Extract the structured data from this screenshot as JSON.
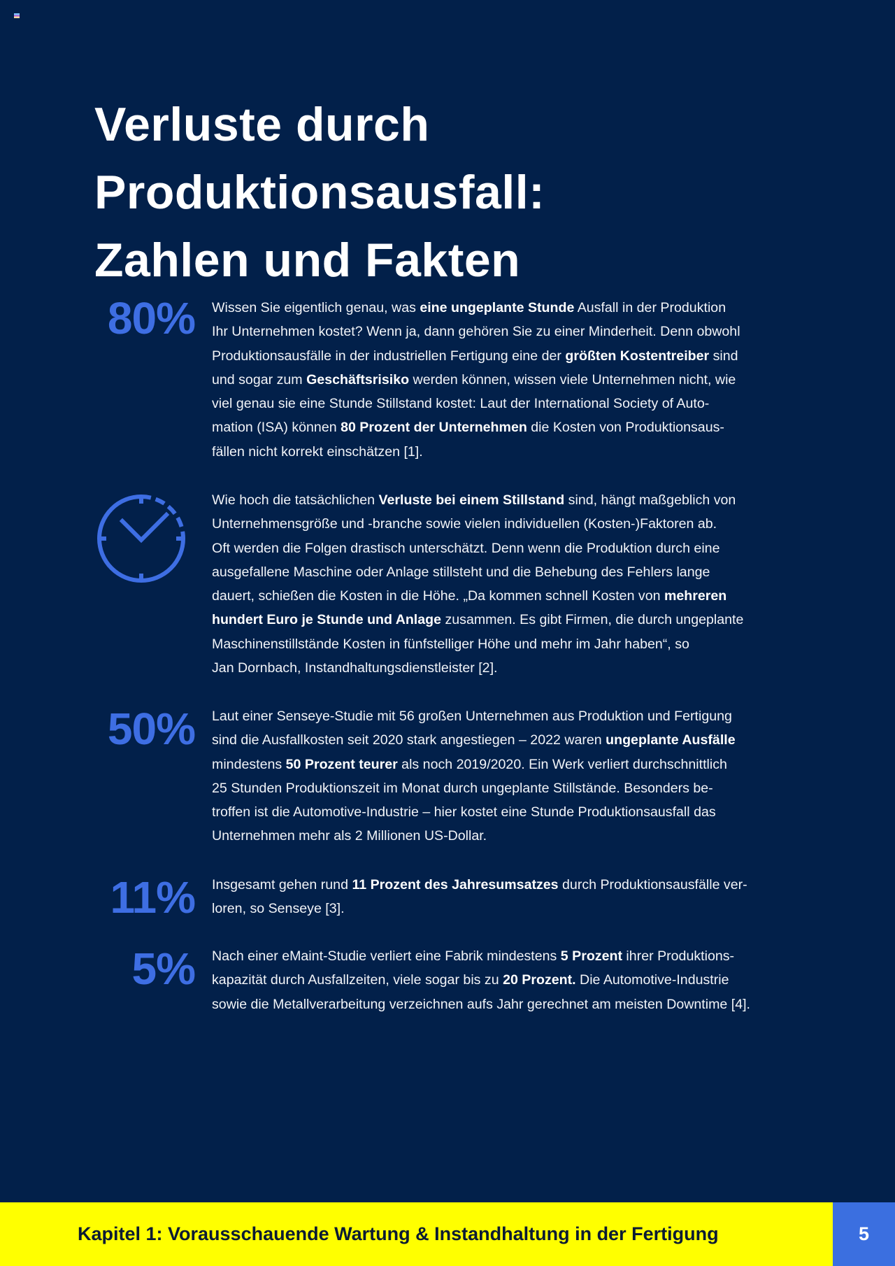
{
  "title_lines": [
    "Verluste durch",
    "Produktionsausfall:",
    "Zahlen und Fakten"
  ],
  "accent_color": "#3e6ee3",
  "sections": [
    {
      "stat": "80%",
      "lines": [
        [
          {
            "t": "Wissen Sie eigentlich genau, was "
          },
          {
            "t": "eine ungeplante Stunde",
            "b": true
          },
          {
            "t": " Ausfall in der Produktion"
          }
        ],
        [
          {
            "t": "Ihr Unternehmen kostet? Wenn ja, dann gehören Sie zu einer Minderheit. Denn obwohl"
          }
        ],
        [
          {
            "t": "Produktionsausfälle in der industriellen Fertigung eine der "
          },
          {
            "t": "größten Kostentreiber",
            "b": true
          },
          {
            "t": " sind"
          }
        ],
        [
          {
            "t": "und sogar zum "
          },
          {
            "t": "Geschäftsrisiko",
            "b": true
          },
          {
            "t": " werden können, wissen viele Unternehmen nicht, wie"
          }
        ],
        [
          {
            "t": "viel genau sie eine Stunde Stillstand kostet: Laut der International Society of Auto-"
          }
        ],
        [
          {
            "t": "mation (ISA) können "
          },
          {
            "t": "80 Prozent der Unternehmen",
            "b": true
          },
          {
            "t": " die Kosten von Produktionsaus-"
          }
        ],
        [
          {
            "t": "fällen nicht korrekt einschätzen [1]."
          }
        ]
      ]
    },
    {
      "icon": "clock-icon",
      "lines": [
        [
          {
            "t": "Wie hoch die tatsächlichen "
          },
          {
            "t": "Verluste bei einem Stillstand",
            "b": true
          },
          {
            "t": " sind, hängt maßgeblich von"
          }
        ],
        [
          {
            "t": "Unternehmensgröße und -branche sowie vielen individuellen (Kosten-)Faktoren ab."
          }
        ],
        [
          {
            "t": "Oft werden die Folgen drastisch unterschätzt. Denn wenn die Produktion durch eine"
          }
        ],
        [
          {
            "t": "ausgefallene Maschine oder Anlage stillsteht und die Behebung des Fehlers lange"
          }
        ],
        [
          {
            "t": "dauert, schießen die Kosten in die Höhe. „Da kommen schnell Kosten von "
          },
          {
            "t": "mehreren",
            "b": true
          }
        ],
        [
          {
            "t": "hundert Euro je Stunde und Anlage",
            "b": true
          },
          {
            "t": " zusammen. Es gibt Firmen, die durch ungeplante"
          }
        ],
        [
          {
            "t": "Maschinenstillstände Kosten in fünfstelliger Höhe und mehr im Jahr haben“, so"
          }
        ],
        [
          {
            "t": "Jan Dornbach, Instandhaltungsdienstleister [2]."
          }
        ]
      ]
    },
    {
      "stat": "50%",
      "lines": [
        [
          {
            "t": "Laut einer Senseye-Studie mit 56 großen Unternehmen aus Produktion und Fertigung"
          }
        ],
        [
          {
            "t": "sind die Ausfallkosten seit 2020 stark angestiegen – 2022 waren "
          },
          {
            "t": "ungeplante Ausfälle",
            "b": true
          }
        ],
        [
          {
            "t": "mindestens "
          },
          {
            "t": "50 Prozent teurer",
            "b": true
          },
          {
            "t": " als noch 2019/2020. Ein Werk verliert durchschnittlich"
          }
        ],
        [
          {
            "t": "25 Stunden Produktionszeit im Monat durch ungeplante Stillstände. Besonders be-"
          }
        ],
        [
          {
            "t": "troffen ist die Automotive-Industrie – hier kostet eine Stunde Produktionsausfall das"
          }
        ],
        [
          {
            "t": "Unternehmen mehr als 2 Millionen US-Dollar."
          }
        ]
      ]
    },
    {
      "stat": "11%",
      "lines": [
        [
          {
            "t": "Insgesamt gehen rund "
          },
          {
            "t": "11 Prozent des Jahresumsatzes",
            "b": true
          },
          {
            "t": " durch Produktionsausfälle ver-"
          }
        ],
        [
          {
            "t": "loren, so Senseye [3]."
          }
        ]
      ]
    },
    {
      "stat": "5%",
      "lines": [
        [
          {
            "t": "Nach einer eMaint-Studie verliert eine Fabrik mindestens "
          },
          {
            "t": "5 Prozent",
            "b": true
          },
          {
            "t": " ihrer Produktions-"
          }
        ],
        [
          {
            "t": "kapazität durch Ausfallzeiten, viele sogar bis zu "
          },
          {
            "t": "20 Prozent.",
            "b": true
          },
          {
            "t": " Die Automotive-Industrie"
          }
        ],
        [
          {
            "t": "sowie die Metallverarbeitung verzeichnen aufs Jahr gerechnet am meisten Downtime [4]."
          }
        ]
      ]
    }
  ],
  "footer": {
    "chapter": "Kapitel 1: Vorausschauende Wartung & Instandhaltung in der Fertigung",
    "page": "5",
    "bar_color": "#ffff00",
    "page_color": "#3b6fe0"
  }
}
